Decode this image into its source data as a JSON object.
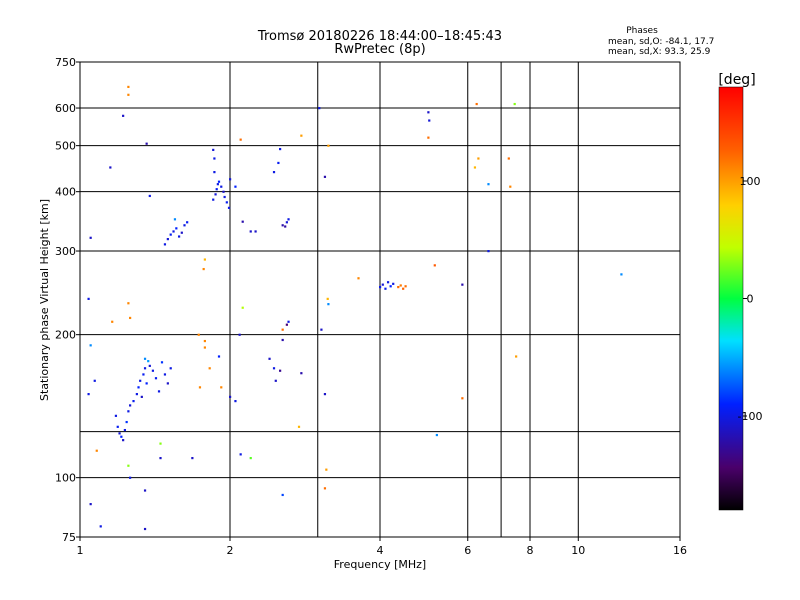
{
  "chart_data": {
    "type": "scatter",
    "title": "Tromsø 20180226 18:44:00–18:45:43",
    "subtitle": "RwPretec (8p)",
    "xlabel": "Frequency [MHz]",
    "ylabel": "Stationary phase Virtual Height [km]",
    "x_scale": "log",
    "y_scale": "log",
    "xlim": [
      1,
      16
    ],
    "ylim": [
      75,
      750
    ],
    "x_ticks": [
      1,
      2,
      4,
      6,
      8,
      10,
      16
    ],
    "x_tick_labels": [
      "1",
      "2",
      "4",
      "6",
      "8",
      "10",
      "16"
    ],
    "x_grid": [
      2,
      3,
      4,
      6,
      7,
      8,
      10
    ],
    "y_ticks": [
      75,
      100,
      200,
      300,
      400,
      500,
      600,
      750
    ],
    "y_tick_labels": [
      "75",
      "100",
      "200",
      "300",
      "400",
      "500",
      "600",
      "750"
    ],
    "y_grid": [
      75,
      100,
      125,
      200,
      300,
      400,
      500,
      600
    ],
    "grid": true,
    "stats": {
      "heading": "Phases",
      "line_o": "mean, sd,O: -84.1, 17.7",
      "line_x": "mean, sd,X:  93.3, 25.9"
    },
    "colorbar": {
      "label": "[deg]",
      "min": -180,
      "max": 180,
      "ticks": [
        100,
        0,
        -100
      ],
      "tick_labels": [
        "100",
        "0",
        "-100"
      ]
    },
    "series": [
      {
        "points": [
          {
            "x": 1.18,
            "y": 135,
            "phase": -100
          },
          {
            "x": 1.19,
            "y": 128,
            "phase": -95
          },
          {
            "x": 1.2,
            "y": 124,
            "phase": -105
          },
          {
            "x": 1.21,
            "y": 122,
            "phase": -90
          },
          {
            "x": 1.22,
            "y": 120,
            "phase": -110
          },
          {
            "x": 1.23,
            "y": 126,
            "phase": -100
          },
          {
            "x": 1.24,
            "y": 131,
            "phase": -85
          },
          {
            "x": 1.25,
            "y": 138,
            "phase": -100
          },
          {
            "x": 1.26,
            "y": 142,
            "phase": -105
          },
          {
            "x": 1.28,
            "y": 145,
            "phase": -95
          },
          {
            "x": 1.3,
            "y": 150,
            "phase": -100
          },
          {
            "x": 1.31,
            "y": 155,
            "phase": -90
          },
          {
            "x": 1.32,
            "y": 160,
            "phase": -100
          },
          {
            "x": 1.33,
            "y": 148,
            "phase": -110
          },
          {
            "x": 1.34,
            "y": 165,
            "phase": -95
          },
          {
            "x": 1.35,
            "y": 170,
            "phase": -100
          },
          {
            "x": 1.36,
            "y": 158,
            "phase": -90
          },
          {
            "x": 1.38,
            "y": 172,
            "phase": -105
          },
          {
            "x": 1.4,
            "y": 168,
            "phase": -100
          },
          {
            "x": 1.42,
            "y": 162,
            "phase": -95
          },
          {
            "x": 1.44,
            "y": 152,
            "phase": -100
          },
          {
            "x": 1.46,
            "y": 175,
            "phase": -85
          },
          {
            "x": 1.48,
            "y": 165,
            "phase": -100
          },
          {
            "x": 1.5,
            "y": 158,
            "phase": -110
          },
          {
            "x": 1.52,
            "y": 170,
            "phase": -100
          },
          {
            "x": 1.35,
            "y": 178,
            "phase": -60
          },
          {
            "x": 1.37,
            "y": 176,
            "phase": -55
          },
          {
            "x": 1.48,
            "y": 310,
            "phase": -100
          },
          {
            "x": 1.5,
            "y": 318,
            "phase": -105
          },
          {
            "x": 1.52,
            "y": 325,
            "phase": -95
          },
          {
            "x": 1.54,
            "y": 330,
            "phase": -100
          },
          {
            "x": 1.56,
            "y": 335,
            "phase": -90
          },
          {
            "x": 1.58,
            "y": 322,
            "phase": -100
          },
          {
            "x": 1.6,
            "y": 328,
            "phase": -110
          },
          {
            "x": 1.62,
            "y": 340,
            "phase": -100
          },
          {
            "x": 1.64,
            "y": 345,
            "phase": -95
          },
          {
            "x": 1.55,
            "y": 350,
            "phase": -60
          },
          {
            "x": 1.85,
            "y": 385,
            "phase": -100
          },
          {
            "x": 1.87,
            "y": 395,
            "phase": -105
          },
          {
            "x": 1.88,
            "y": 405,
            "phase": -95
          },
          {
            "x": 1.89,
            "y": 415,
            "phase": -100
          },
          {
            "x": 1.9,
            "y": 420,
            "phase": -90
          },
          {
            "x": 1.92,
            "y": 410,
            "phase": -100
          },
          {
            "x": 1.94,
            "y": 400,
            "phase": -110
          },
          {
            "x": 1.95,
            "y": 390,
            "phase": -100
          },
          {
            "x": 1.97,
            "y": 380,
            "phase": -95
          },
          {
            "x": 1.99,
            "y": 370,
            "phase": -100
          },
          {
            "x": 2.0,
            "y": 425,
            "phase": -105
          },
          {
            "x": 1.86,
            "y": 440,
            "phase": -100
          },
          {
            "x": 1.86,
            "y": 470,
            "phase": -100
          },
          {
            "x": 1.85,
            "y": 490,
            "phase": -105
          },
          {
            "x": 2.05,
            "y": 410,
            "phase": -90
          },
          {
            "x": 2.55,
            "y": 340,
            "phase": -120
          },
          {
            "x": 2.6,
            "y": 345,
            "phase": -105
          },
          {
            "x": 2.62,
            "y": 350,
            "phase": -100
          },
          {
            "x": 2.58,
            "y": 338,
            "phase": -125
          },
          {
            "x": 2.52,
            "y": 492,
            "phase": -100
          },
          {
            "x": 2.5,
            "y": 460,
            "phase": -95
          },
          {
            "x": 2.45,
            "y": 440,
            "phase": -100
          },
          {
            "x": 2.2,
            "y": 330,
            "phase": -110
          },
          {
            "x": 2.55,
            "y": 195,
            "phase": -120
          },
          {
            "x": 2.6,
            "y": 210,
            "phase": -140
          },
          {
            "x": 2.62,
            "y": 213,
            "phase": -100
          },
          {
            "x": 2.55,
            "y": 205,
            "phase": 120
          },
          {
            "x": 2.47,
            "y": 160,
            "phase": -110
          },
          {
            "x": 2.45,
            "y": 170,
            "phase": -100
          },
          {
            "x": 2.52,
            "y": 168,
            "phase": -130
          },
          {
            "x": 2.4,
            "y": 178,
            "phase": -110
          },
          {
            "x": 2.78,
            "y": 166,
            "phase": -120
          },
          {
            "x": 2.0,
            "y": 148,
            "phase": -110
          },
          {
            "x": 2.05,
            "y": 145,
            "phase": -100
          },
          {
            "x": 1.9,
            "y": 180,
            "phase": -90
          },
          {
            "x": 2.2,
            "y": 110,
            "phase": 20
          },
          {
            "x": 2.1,
            "y": 112,
            "phase": -100
          },
          {
            "x": 2.75,
            "y": 128,
            "phase": 90
          },
          {
            "x": 3.1,
            "y": 430,
            "phase": -120
          },
          {
            "x": 3.1,
            "y": 150,
            "phase": -110
          },
          {
            "x": 4.0,
            "y": 252,
            "phase": -100
          },
          {
            "x": 4.05,
            "y": 255,
            "phase": -105
          },
          {
            "x": 4.1,
            "y": 250,
            "phase": -95
          },
          {
            "x": 4.15,
            "y": 258,
            "phase": -100
          },
          {
            "x": 4.2,
            "y": 253,
            "phase": -90
          },
          {
            "x": 4.25,
            "y": 256,
            "phase": -100
          },
          {
            "x": 4.35,
            "y": 252,
            "phase": 120
          },
          {
            "x": 4.4,
            "y": 254,
            "phase": 115
          },
          {
            "x": 4.45,
            "y": 250,
            "phase": 125
          },
          {
            "x": 4.5,
            "y": 253,
            "phase": 120
          },
          {
            "x": 5.0,
            "y": 588,
            "phase": -110
          },
          {
            "x": 5.02,
            "y": 565,
            "phase": -105
          },
          {
            "x": 5.0,
            "y": 520,
            "phase": 120
          },
          {
            "x": 5.15,
            "y": 280,
            "phase": 130
          },
          {
            "x": 5.85,
            "y": 255,
            "phase": -120
          },
          {
            "x": 6.2,
            "y": 450,
            "phase": 90
          },
          {
            "x": 6.3,
            "y": 470,
            "phase": 100
          },
          {
            "x": 6.6,
            "y": 415,
            "phase": -60
          },
          {
            "x": 6.6,
            "y": 300,
            "phase": -100
          },
          {
            "x": 7.25,
            "y": 470,
            "phase": 120
          },
          {
            "x": 7.3,
            "y": 410,
            "phase": 110
          },
          {
            "x": 7.45,
            "y": 612,
            "phase": 30
          },
          {
            "x": 7.5,
            "y": 180,
            "phase": 100
          },
          {
            "x": 5.85,
            "y": 147,
            "phase": 120
          },
          {
            "x": 5.2,
            "y": 123,
            "phase": -60
          },
          {
            "x": 6.25,
            "y": 612,
            "phase": 120
          },
          {
            "x": 3.02,
            "y": 600,
            "phase": -100
          },
          {
            "x": 2.78,
            "y": 525,
            "phase": 100
          },
          {
            "x": 3.15,
            "y": 500,
            "phase": 100
          },
          {
            "x": 3.15,
            "y": 232,
            "phase": -60
          },
          {
            "x": 3.14,
            "y": 238,
            "phase": 90
          },
          {
            "x": 3.05,
            "y": 205,
            "phase": -110
          },
          {
            "x": 3.62,
            "y": 263,
            "phase": 110
          },
          {
            "x": 2.55,
            "y": 92,
            "phase": -80
          },
          {
            "x": 3.12,
            "y": 104,
            "phase": 100
          },
          {
            "x": 3.1,
            "y": 95,
            "phase": 120
          },
          {
            "x": 12.2,
            "y": 268,
            "phase": -60
          },
          {
            "x": 2.1,
            "y": 515,
            "phase": 120
          },
          {
            "x": 1.25,
            "y": 665,
            "phase": 110
          },
          {
            "x": 1.25,
            "y": 640,
            "phase": 110
          },
          {
            "x": 1.22,
            "y": 578,
            "phase": -110
          },
          {
            "x": 1.36,
            "y": 505,
            "phase": -120
          },
          {
            "x": 1.15,
            "y": 450,
            "phase": -110
          },
          {
            "x": 1.38,
            "y": 392,
            "phase": -100
          },
          {
            "x": 1.05,
            "y": 320,
            "phase": -110
          },
          {
            "x": 1.04,
            "y": 238,
            "phase": -100
          },
          {
            "x": 1.05,
            "y": 190,
            "phase": -60
          },
          {
            "x": 1.25,
            "y": 233,
            "phase": 110
          },
          {
            "x": 1.16,
            "y": 213,
            "phase": 110
          },
          {
            "x": 1.26,
            "y": 217,
            "phase": 110
          },
          {
            "x": 1.07,
            "y": 160,
            "phase": -100
          },
          {
            "x": 1.04,
            "y": 150,
            "phase": -100
          },
          {
            "x": 1.08,
            "y": 114,
            "phase": 110
          },
          {
            "x": 1.25,
            "y": 106,
            "phase": 30
          },
          {
            "x": 1.26,
            "y": 100,
            "phase": -100
          },
          {
            "x": 1.05,
            "y": 88,
            "phase": -110
          },
          {
            "x": 1.1,
            "y": 79,
            "phase": -100
          },
          {
            "x": 1.35,
            "y": 94,
            "phase": -110
          },
          {
            "x": 1.35,
            "y": 78,
            "phase": -110
          },
          {
            "x": 1.45,
            "y": 118,
            "phase": 30
          },
          {
            "x": 1.45,
            "y": 110,
            "phase": -110
          },
          {
            "x": 1.68,
            "y": 110,
            "phase": -110
          },
          {
            "x": 1.73,
            "y": 200,
            "phase": 110
          },
          {
            "x": 1.78,
            "y": 194,
            "phase": 110
          },
          {
            "x": 1.78,
            "y": 188,
            "phase": 110
          },
          {
            "x": 1.82,
            "y": 170,
            "phase": 110
          },
          {
            "x": 1.74,
            "y": 155,
            "phase": 110
          },
          {
            "x": 1.92,
            "y": 155,
            "phase": 110
          },
          {
            "x": 1.78,
            "y": 288,
            "phase": 90
          },
          {
            "x": 1.77,
            "y": 275,
            "phase": 110
          },
          {
            "x": 2.25,
            "y": 330,
            "phase": -110
          },
          {
            "x": 2.12,
            "y": 228,
            "phase": 40
          },
          {
            "x": 2.09,
            "y": 200,
            "phase": -110
          },
          {
            "x": 2.12,
            "y": 346,
            "phase": -120
          }
        ]
      }
    ]
  }
}
